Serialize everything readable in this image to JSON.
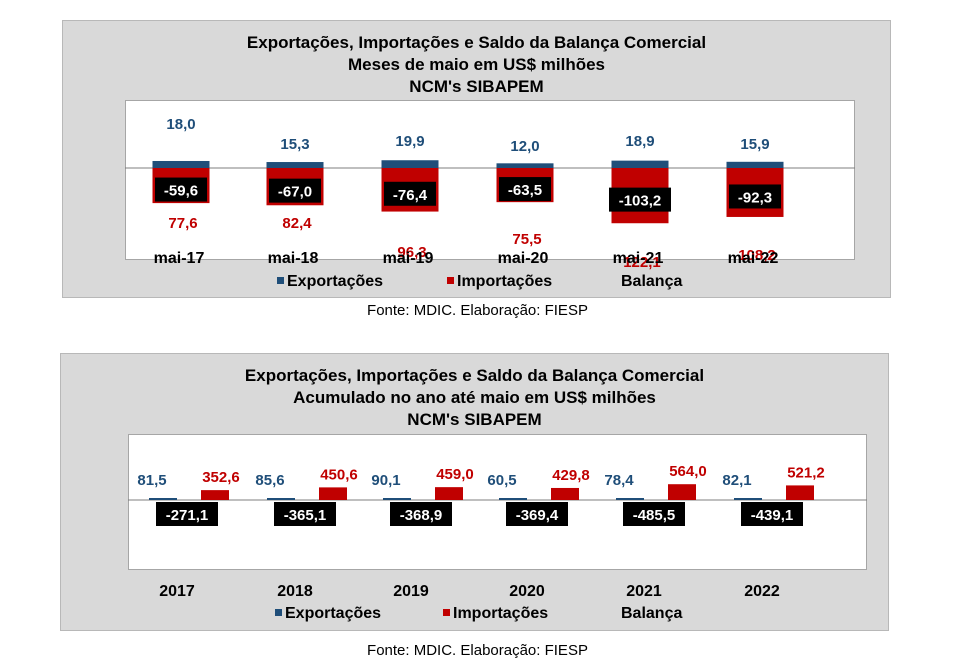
{
  "charts": [
    {
      "title_lines": [
        "Exportações, Importações e Saldo da Balança Comercial",
        "Meses de maio em US$ milhões",
        "NCM's SIBAPEM"
      ],
      "source": "Fonte: MDIC. Elaboração: FIESP",
      "legend": [
        "Exportações",
        "Importações",
        "Balança"
      ]
    },
    {
      "title_lines": [
        "Exportações, Importações e Saldo da Balança Comercial",
        "Acumulado no ano até maio em US$ milhões",
        "NCM's SIBAPEM"
      ],
      "source": "Fonte: MDIC. Elaboração: FIESP",
      "legend": [
        "Exportações",
        "Importações",
        "Balança"
      ]
    }
  ],
  "colors": {
    "exports": "#1f4e79",
    "imports": "#c00000",
    "balance": "#000000",
    "panel": "#d9d9d9"
  },
  "chart_data": [
    {
      "type": "bar",
      "title": "Exportações, Importações e Saldo da Balança Comercial",
      "categories": [
        "mai-17",
        "mai-18",
        "mai-19",
        "mai-20",
        "mai-21",
        "mai-22"
      ],
      "series": [
        {
          "name": "Exportações",
          "values": [
            18.0,
            15.3,
            19.9,
            12.0,
            18.9,
            15.9
          ],
          "labels": [
            "18,0",
            "15,3",
            "19,9",
            "12,0",
            "18,9",
            "15,9"
          ]
        },
        {
          "name": "Importações",
          "values": [
            77.6,
            82.4,
            96.3,
            75.5,
            122.1,
            108.2
          ],
          "labels": [
            "77,6",
            "82,4",
            "96,3",
            "75,5",
            "122,1",
            "108,2"
          ]
        },
        {
          "name": "Balança",
          "values": [
            -59.6,
            -67.0,
            -76.4,
            -63.5,
            -103.2,
            -92.3
          ],
          "labels": [
            "-59,6",
            "-67,0",
            "-76,4",
            "-63,5",
            "-103,2",
            "-92,3"
          ]
        }
      ]
    },
    {
      "type": "bar",
      "title": "Exportações, Importações e Saldo da Balança Comercial",
      "categories": [
        "2017",
        "2018",
        "2019",
        "2020",
        "2021",
        "2022"
      ],
      "series": [
        {
          "name": "Exportações",
          "values": [
            81.5,
            85.6,
            90.1,
            60.5,
            78.4,
            82.1
          ],
          "labels": [
            "81,5",
            "85,6",
            "90,1",
            "60,5",
            "78,4",
            "82,1"
          ]
        },
        {
          "name": "Importações",
          "values": [
            352.6,
            450.6,
            459.0,
            429.8,
            564.0,
            521.2
          ],
          "labels": [
            "352,6",
            "450,6",
            "459,0",
            "429,8",
            "564,0",
            "521,2"
          ]
        },
        {
          "name": "Balança",
          "values": [
            -271.1,
            -365.1,
            -368.9,
            -369.4,
            -485.5,
            -439.1
          ],
          "labels": [
            "-271,1",
            "-365,1",
            "-368,9",
            "-369,4",
            "-485,5",
            "-439,1"
          ]
        }
      ]
    }
  ]
}
